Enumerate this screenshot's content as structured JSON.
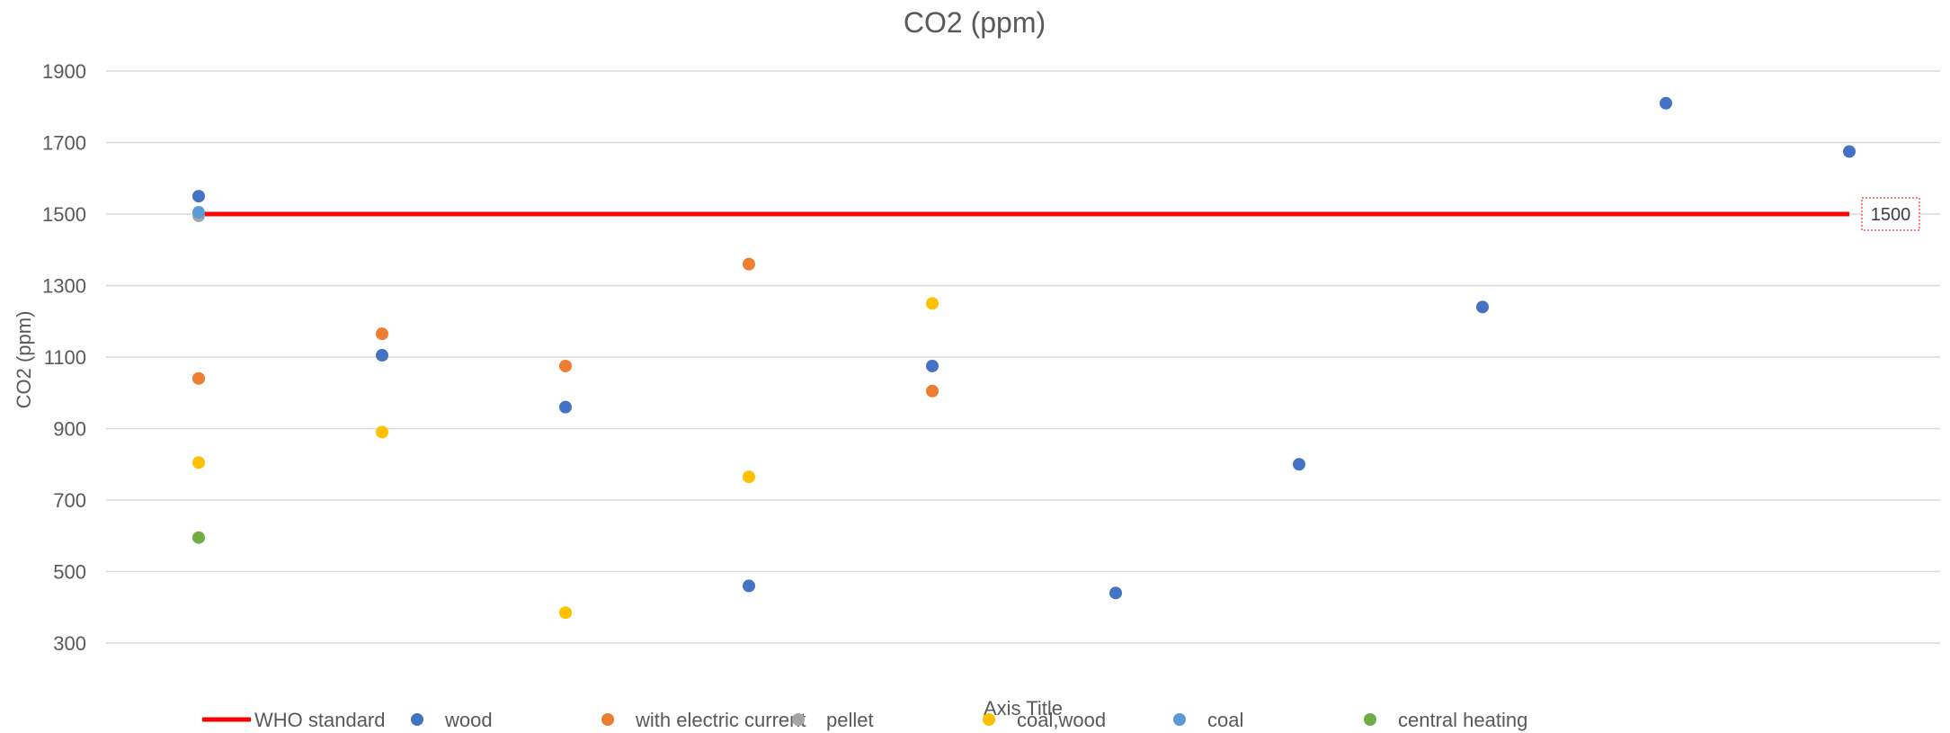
{
  "chart_data": {
    "type": "scatter",
    "title": "CO2 (ppm)",
    "xlabel": "Axis Title",
    "ylabel": "CO2 (ppm)",
    "xlim": [
      0.5,
      10.5
    ],
    "ylim": [
      200,
      1900
    ],
    "y_ticks": [
      300,
      500,
      700,
      900,
      1100,
      1300,
      1500,
      1700,
      1900
    ],
    "grid": true,
    "legend_position": "bottom",
    "reference_line": {
      "name": "WHO standard",
      "value": 1500,
      "label": "1500",
      "color": "#ff0000"
    },
    "series": [
      {
        "name": "wood",
        "color": "#4472c4",
        "points": [
          [
            1,
            1550
          ],
          [
            2,
            1105
          ],
          [
            3,
            960
          ],
          [
            4,
            460
          ],
          [
            5,
            1075
          ],
          [
            6,
            440
          ],
          [
            7,
            800
          ],
          [
            8,
            1240
          ],
          [
            9,
            1810
          ],
          [
            10,
            1675
          ]
        ]
      },
      {
        "name": "with electric current",
        "color": "#ed7d31",
        "points": [
          [
            1,
            1040
          ],
          [
            2,
            1165
          ],
          [
            3,
            1075
          ],
          [
            4,
            1360
          ],
          [
            5,
            1005
          ]
        ]
      },
      {
        "name": "pellet",
        "color": "#a5a5a5",
        "points": [
          [
            1,
            1495
          ]
        ]
      },
      {
        "name": "coal,wood",
        "color": "#ffc000",
        "points": [
          [
            1,
            805
          ],
          [
            2,
            890
          ],
          [
            3,
            385
          ],
          [
            4,
            765
          ],
          [
            5,
            1250
          ]
        ]
      },
      {
        "name": "coal",
        "color": "#5b9bd5",
        "points": [
          [
            1,
            1505
          ]
        ]
      },
      {
        "name": "central heating",
        "color": "#70ad47",
        "points": [
          [
            1,
            595
          ]
        ]
      }
    ]
  }
}
